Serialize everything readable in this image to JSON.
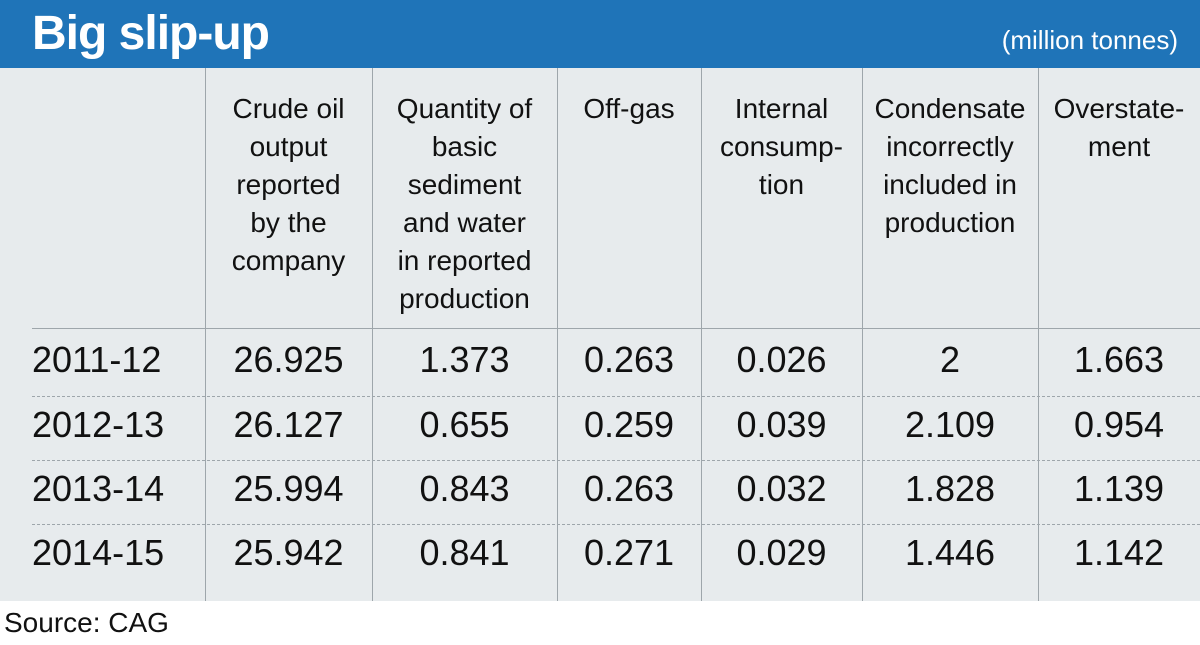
{
  "title": "Big slip-up",
  "units": "(million tonnes)",
  "source": "Source: CAG",
  "colors": {
    "header_bg": "#1f74b8",
    "table_bg": "#e7ebed",
    "text": "#111111",
    "rule": "#9ea6ab"
  },
  "chart_data": {
    "type": "table",
    "title": "Big slip-up",
    "subtitle": "(million tonnes)",
    "columns": [
      "",
      "Crude oil\noutput\nreported\nby the\ncompany",
      "Quantity of\nbasic\nsediment\nand water\nin reported\nproduction",
      "Off-gas",
      "Internal\nconsump-\ntion",
      "Condensate\nincorrectly\nincluded in\nproduction",
      "Overstate-\nment"
    ],
    "rows": [
      [
        "2011-12",
        "26.925",
        "1.373",
        "0.263",
        "0.026",
        "2",
        "1.663"
      ],
      [
        "2012-13",
        "26.127",
        "0.655",
        "0.259",
        "0.039",
        "2.109",
        "0.954"
      ],
      [
        "2013-14",
        "25.994",
        "0.843",
        "0.263",
        "0.032",
        "1.828",
        "1.139"
      ],
      [
        "2014-15",
        "25.942",
        "0.841",
        "0.271",
        "0.029",
        "1.446",
        "1.142"
      ]
    ],
    "source": "Source: CAG"
  }
}
